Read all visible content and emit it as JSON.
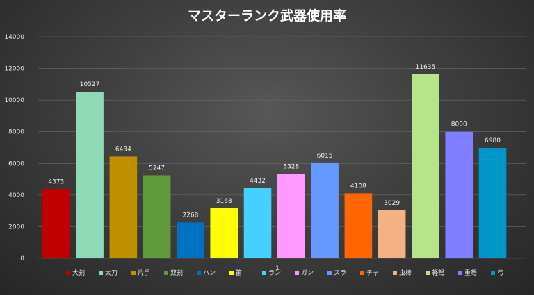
{
  "chart_data": {
    "type": "bar",
    "title": "マスターランク武器使用率",
    "xlabel": "",
    "ylabel": "",
    "ylim": [
      0,
      14000
    ],
    "yticks": [
      "0",
      "2000",
      "4000",
      "6000",
      "8000",
      "10000",
      "12000",
      "14000"
    ],
    "x_category_label": "1",
    "grid": true,
    "legend_position": "bottom",
    "series": [
      {
        "name": "大剣",
        "value": 4373,
        "label": "4373",
        "color": "#c00000"
      },
      {
        "name": "太刀",
        "value": 10527,
        "label": "10527",
        "color": "#8fd9b6"
      },
      {
        "name": "片手",
        "value": 6434,
        "label": "6434",
        "color": "#bf9000"
      },
      {
        "name": "双剣",
        "value": 5247,
        "label": "5247",
        "color": "#5f9a3c"
      },
      {
        "name": "ハン",
        "value": 2268,
        "label": "2268",
        "color": "#0070c0"
      },
      {
        "name": "笛",
        "value": 3168,
        "label": "3168",
        "color": "#ffff00"
      },
      {
        "name": "ラン",
        "value": 4432,
        "label": "4432",
        "color": "#45d1ff"
      },
      {
        "name": "ガン",
        "value": 5328,
        "label": "5328",
        "color": "#ff99ff"
      },
      {
        "name": "スラ",
        "value": 6015,
        "label": "6015",
        "color": "#6699ff"
      },
      {
        "name": "チャ",
        "value": 4108,
        "label": "4108",
        "color": "#ff6600"
      },
      {
        "name": "虫棒",
        "value": 3029,
        "label": "3029",
        "color": "#f4b183"
      },
      {
        "name": "軽弩",
        "value": 11635,
        "label": "11635",
        "color": "#b6e48a"
      },
      {
        "name": "重弩",
        "value": 8000,
        "label": "8000",
        "color": "#7f7fff"
      },
      {
        "name": "弓",
        "value": 6980,
        "label": "6980",
        "color": "#0096c8"
      }
    ]
  }
}
